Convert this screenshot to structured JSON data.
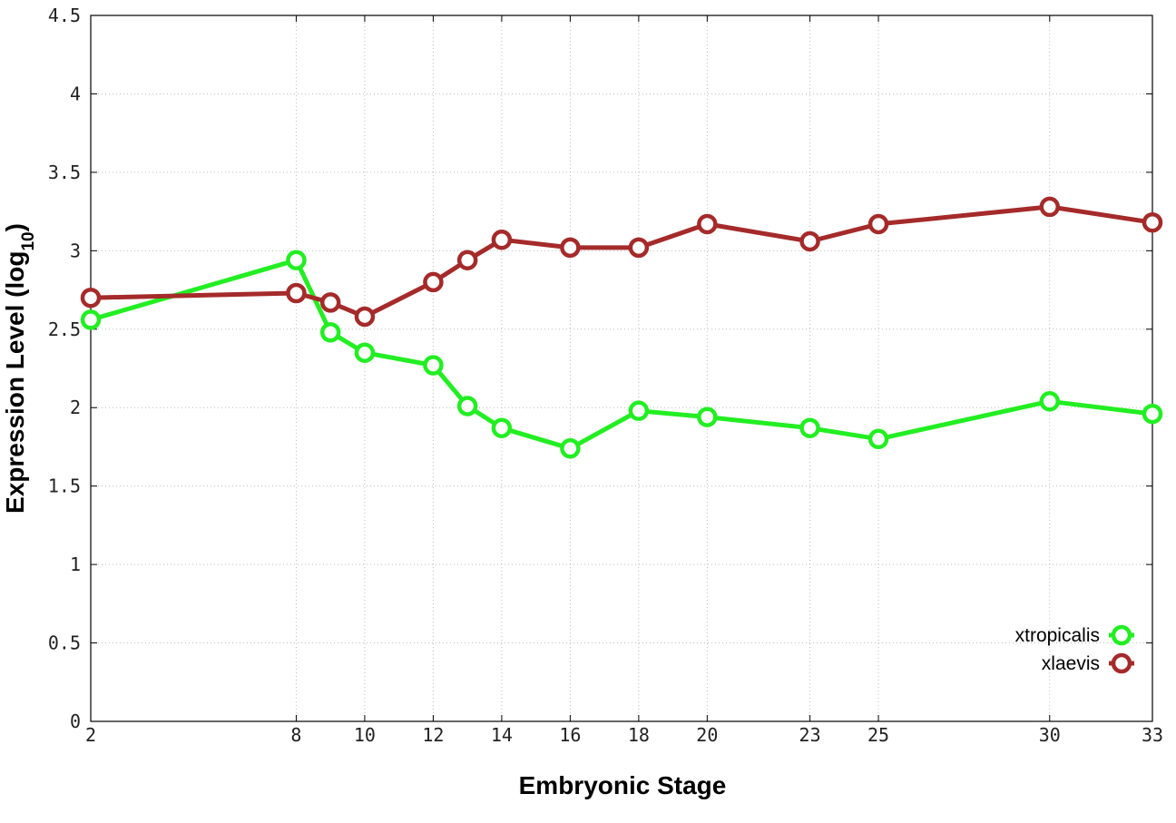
{
  "chart_data": {
    "type": "line",
    "title": "",
    "xlabel": "Embryonic Stage",
    "ylabel_main": "Expression Level (log",
    "ylabel_sub": "10",
    "ylabel_close": ")",
    "xlim": [
      2,
      33
    ],
    "ylim": [
      0,
      4.5
    ],
    "x_ticks": [
      2,
      8,
      10,
      12,
      14,
      16,
      18,
      20,
      23,
      25,
      30,
      33
    ],
    "x_tick_labels": [
      "2",
      "8",
      "10",
      "12",
      "14",
      "16",
      "18",
      "20",
      "23",
      "25",
      "30",
      "33"
    ],
    "y_ticks": [
      0,
      0.5,
      1,
      1.5,
      2,
      2.5,
      3,
      3.5,
      4,
      4.5
    ],
    "y_tick_labels": [
      "0",
      "0.5",
      "1",
      "1.5",
      "2",
      "2.5",
      "3",
      "3.5",
      "4",
      "4.5"
    ],
    "grid": true,
    "legend_position": "bottom-right",
    "series": [
      {
        "name": "xtropicalis",
        "color": "#22ee22",
        "points": [
          [
            2,
            2.56
          ],
          [
            8,
            2.94
          ],
          [
            9,
            2.48
          ],
          [
            10,
            2.35
          ],
          [
            12,
            2.27
          ],
          [
            13,
            2.01
          ],
          [
            14,
            1.87
          ],
          [
            16,
            1.74
          ],
          [
            18,
            1.98
          ],
          [
            20,
            1.94
          ],
          [
            23,
            1.87
          ],
          [
            25,
            1.8
          ],
          [
            30,
            2.04
          ],
          [
            33,
            1.96
          ]
        ]
      },
      {
        "name": "xlaevis",
        "color": "#a52a2a",
        "points": [
          [
            2,
            2.7
          ],
          [
            8,
            2.73
          ],
          [
            9,
            2.67
          ],
          [
            10,
            2.58
          ],
          [
            12,
            2.8
          ],
          [
            13,
            2.94
          ],
          [
            14,
            3.07
          ],
          [
            16,
            3.02
          ],
          [
            18,
            3.02
          ],
          [
            20,
            3.17
          ],
          [
            23,
            3.06
          ],
          [
            25,
            3.17
          ],
          [
            30,
            3.28
          ],
          [
            33,
            3.18
          ]
        ]
      }
    ]
  }
}
